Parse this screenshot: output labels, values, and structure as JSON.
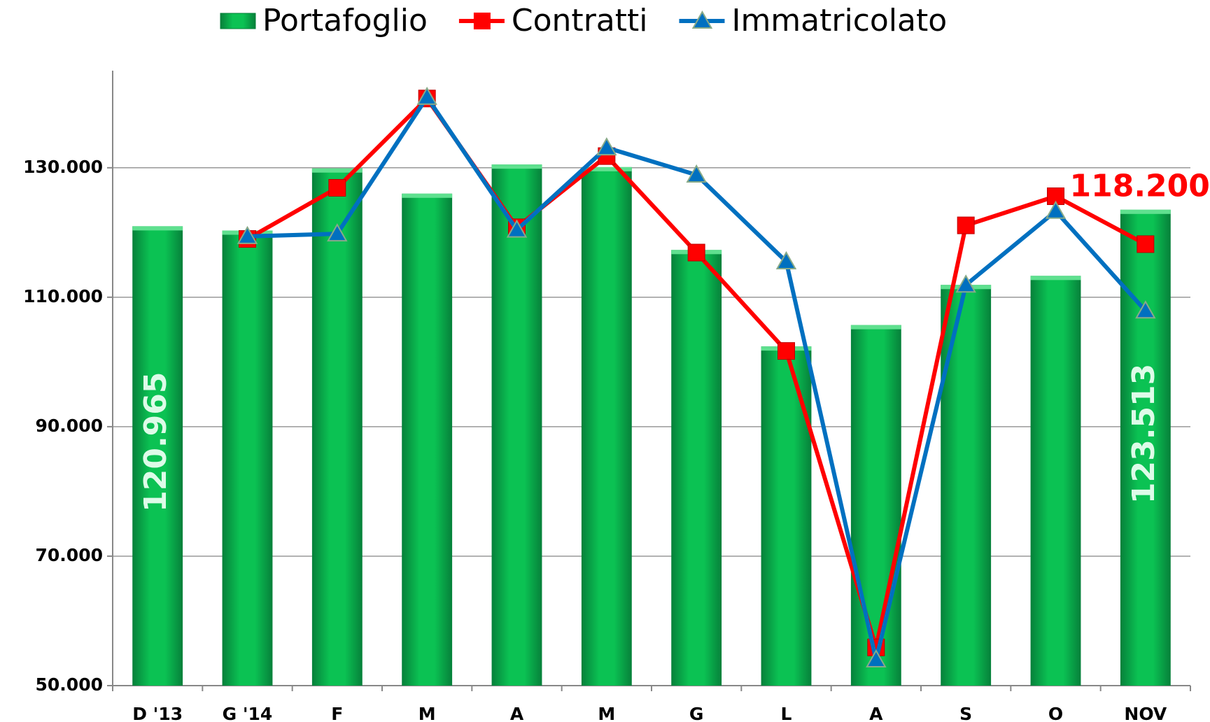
{
  "chart_data": {
    "type": "bar-line",
    "categories": [
      "D '13",
      "G '14",
      "F",
      "M",
      "A",
      "M",
      "G",
      "L",
      "A",
      "S",
      "O",
      "NOV"
    ],
    "series": [
      {
        "name": "Portafoglio",
        "type": "bar",
        "color": "#0bb84c",
        "values": [
          120965,
          120300,
          129900,
          126000,
          130500,
          130100,
          117300,
          102400,
          105700,
          111900,
          113300,
          123513
        ],
        "value_labels": [
          "120.965",
          null,
          null,
          null,
          null,
          null,
          null,
          null,
          null,
          null,
          null,
          "123.513"
        ]
      },
      {
        "name": "Contratti",
        "type": "line",
        "color": "#ff0000",
        "values": [
          null,
          119000,
          126900,
          140700,
          120800,
          131800,
          116900,
          101700,
          55900,
          121100,
          125600,
          118200
        ],
        "value_labels": [
          null,
          null,
          null,
          null,
          null,
          null,
          null,
          null,
          null,
          null,
          null,
          "118.200"
        ]
      },
      {
        "name": "Immatricolato",
        "type": "line",
        "color": "#0070c0",
        "values": [
          null,
          119400,
          119800,
          140900,
          120400,
          133100,
          128900,
          115500,
          54000,
          111900,
          123300,
          107900
        ]
      }
    ],
    "ylim": [
      50000,
      145000
    ],
    "yticks": [
      {
        "value": 50000,
        "label": "50.000"
      },
      {
        "value": 70000,
        "label": "70.000"
      },
      {
        "value": 90000,
        "label": "90.000"
      },
      {
        "value": 110000,
        "label": "110.000"
      },
      {
        "value": 130000,
        "label": "130.000"
      }
    ],
    "grid": true,
    "legend": "top"
  }
}
